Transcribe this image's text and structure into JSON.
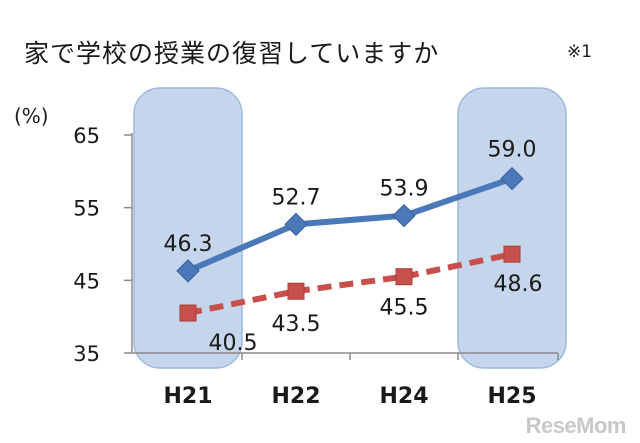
{
  "chart_data": {
    "type": "line",
    "title": "家で学校の授業の復習していますか",
    "note": "※1",
    "unit_label": "(%)",
    "categories": [
      "H21",
      "H22",
      "H24",
      "H25"
    ],
    "highlighted_categories": [
      "H21",
      "H25"
    ],
    "y_ticks": [
      "65",
      "55",
      "45",
      "35"
    ],
    "ylim": [
      35,
      65
    ],
    "series": [
      {
        "values": [
          46.3,
          52.7,
          53.9,
          59.0
        ],
        "labels": [
          "46.3",
          "52.7",
          "53.9",
          "59.0"
        ],
        "color": "#4a78b8",
        "marker": "diamond",
        "line_style": "solid"
      },
      {
        "values": [
          40.5,
          43.5,
          45.5,
          48.6
        ],
        "labels": [
          "40.5",
          "43.5",
          "45.5",
          "48.6"
        ],
        "color": "#c8504c",
        "marker": "square",
        "line_style": "dashed"
      }
    ],
    "colors": {
      "highlight": "#c5d6ec",
      "highlight_border": "#9fb9dc",
      "axis": "#8c8c8c",
      "text": "#1a1a1a"
    }
  },
  "watermark": "ReseMom"
}
